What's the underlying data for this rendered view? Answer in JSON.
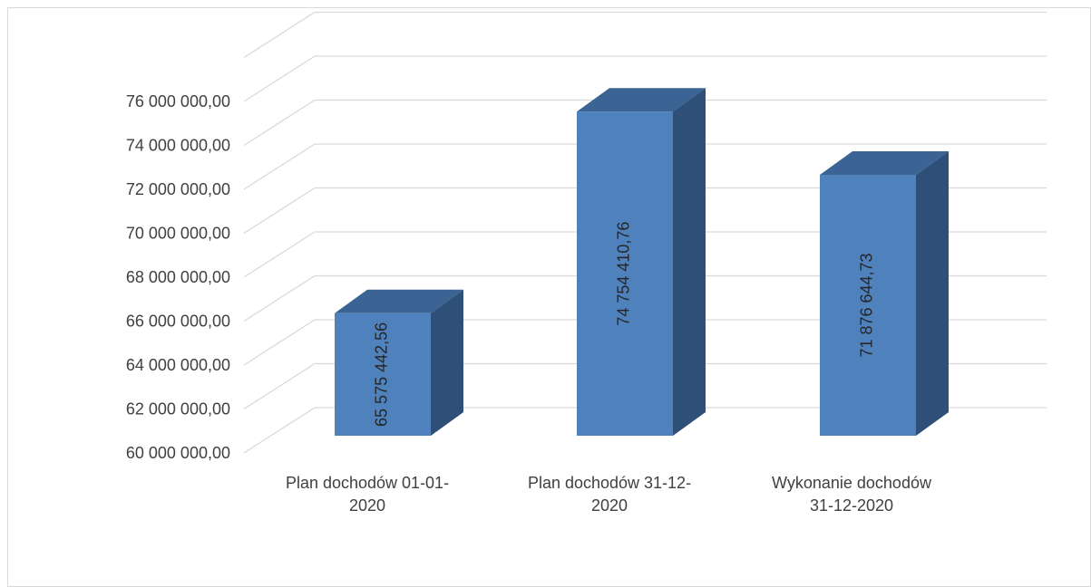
{
  "chart_data": {
    "type": "bar",
    "style": "3d-column",
    "categories": [
      [
        "Plan dochodów 01-01-",
        "2020"
      ],
      [
        "Plan dochodów 31-12-",
        "2020"
      ],
      [
        "Wykonanie dochodów",
        "31-12-2020"
      ]
    ],
    "values": [
      65575442.56,
      74754410.76,
      71876644.73
    ],
    "data_labels": [
      "65 575 442,56",
      "74 754 410,76",
      "71 876 644,73"
    ],
    "y_ticks": [
      60000000,
      62000000,
      64000000,
      66000000,
      68000000,
      70000000,
      72000000,
      74000000,
      76000000
    ],
    "y_tick_labels": [
      "60 000 000,00",
      "62 000 000,00",
      "64 000 000,00",
      "66 000 000,00",
      "68 000 000,00",
      "70 000 000,00",
      "72 000 000,00",
      "74 000 000,00",
      "76 000 000,00"
    ],
    "ylim": [
      60000000,
      78000000
    ],
    "grid": true,
    "legend": "none",
    "title": "",
    "xlabel": "",
    "ylabel": "",
    "colors": {
      "front": "#4f81bd",
      "side": "#2e4f78",
      "top": "#3b6494",
      "grid": "#d9d9d9",
      "text": "#404040"
    }
  }
}
